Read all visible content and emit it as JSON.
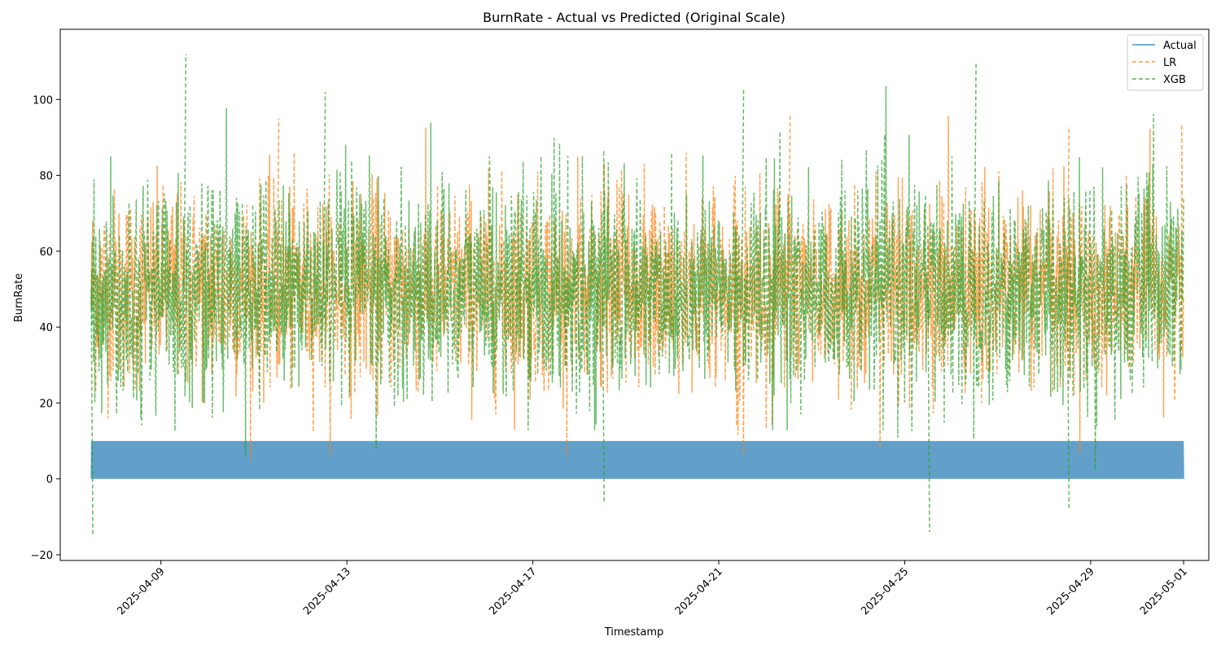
{
  "chart_data": {
    "type": "line",
    "title": "BurnRate - Actual vs Predicted (Original Scale)",
    "xlabel": "Timestamp",
    "ylabel": "BurnRate",
    "x_range": [
      "2025-04-07",
      "2025-05-01"
    ],
    "xlim": [
      "2025-04-06T20:00",
      "2025-05-01T13:00"
    ],
    "ylim": [
      -21.5,
      118.5
    ],
    "x_ticks": [
      "2025-04-09",
      "2025-04-13",
      "2025-04-17",
      "2025-04-21",
      "2025-04-25",
      "2025-04-29",
      "2025-05-01"
    ],
    "y_ticks": [
      -20,
      0,
      20,
      40,
      60,
      80,
      100
    ],
    "grid": false,
    "legend_position": "top-right",
    "series": [
      {
        "name": "Actual",
        "color": "#1f77b4",
        "style": "solid",
        "value_range": [
          0,
          10
        ],
        "approx_mean": 5
      },
      {
        "name": "LR",
        "color": "#ff7f0e",
        "style": "dashed",
        "value_range": [
          3,
          97
        ],
        "approx_mean": 50,
        "notable_points": [
          {
            "x": "2025-04-11",
            "y": 95
          },
          {
            "x": "2025-04-22",
            "y": 96
          },
          {
            "x": "2025-04-28",
            "y": 93
          }
        ]
      },
      {
        "name": "XGB",
        "color": "#2ca02c",
        "style": "dashed",
        "value_range": [
          -15,
          112
        ],
        "approx_mean": 50,
        "notable_points": [
          {
            "x": "2025-04-07",
            "y": -15
          },
          {
            "x": "2025-04-09",
            "y": 112
          },
          {
            "x": "2025-04-12",
            "y": 102
          },
          {
            "x": "2025-04-21",
            "y": 103
          },
          {
            "x": "2025-04-26",
            "y": 110
          },
          {
            "x": "2025-04-25",
            "y": -14
          },
          {
            "x": "2025-04-28",
            "y": -8
          },
          {
            "x": "2025-04-18",
            "y": -6
          }
        ]
      }
    ]
  }
}
